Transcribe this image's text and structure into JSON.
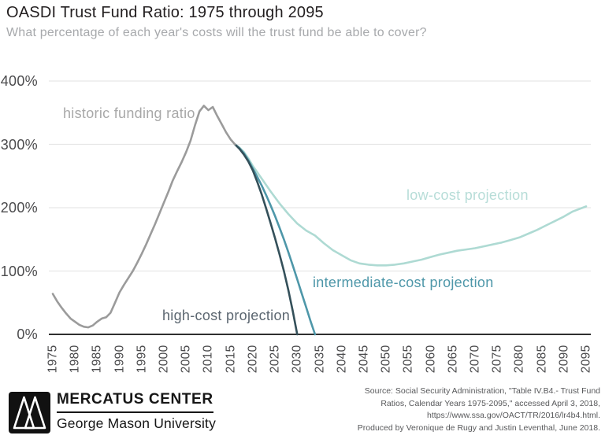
{
  "header": {
    "title": "OASDI Trust Fund Ratio: 1975 through 2095",
    "subtitle": "What percentage of each year's costs will the trust fund be able to cover?"
  },
  "chart_data": {
    "type": "line",
    "title": "OASDI Trust Fund Ratio: 1975 through 2095",
    "xlabel": "",
    "ylabel": "",
    "x_range": [
      1975,
      2095
    ],
    "y_range_pct": [
      0,
      400
    ],
    "grid": "horizontal-light",
    "x_ticks": [
      1975,
      1980,
      1985,
      1990,
      1995,
      2000,
      2005,
      2010,
      2015,
      2020,
      2025,
      2030,
      2035,
      2040,
      2045,
      2050,
      2055,
      2060,
      2065,
      2070,
      2075,
      2080,
      2085,
      2090,
      2095
    ],
    "y_ticks": [
      {
        "label": "0%",
        "value": 0
      },
      {
        "label": "100%",
        "value": 100
      },
      {
        "label": "200%",
        "value": 200
      },
      {
        "label": "300%",
        "value": 300
      },
      {
        "label": "400%",
        "value": 400
      }
    ],
    "series": [
      {
        "id": "low",
        "label": "low-cost projection",
        "color": "#aedad3",
        "points": [
          [
            2016,
            300
          ],
          [
            2017,
            295
          ],
          [
            2018,
            288
          ],
          [
            2019,
            278
          ],
          [
            2020,
            266
          ],
          [
            2022,
            246
          ],
          [
            2024,
            226
          ],
          [
            2026,
            207
          ],
          [
            2028,
            190
          ],
          [
            2030,
            175
          ],
          [
            2032,
            164
          ],
          [
            2034,
            156
          ],
          [
            2036,
            144
          ],
          [
            2038,
            133
          ],
          [
            2040,
            125
          ],
          [
            2042,
            117
          ],
          [
            2044,
            112
          ],
          [
            2046,
            110
          ],
          [
            2048,
            109
          ],
          [
            2050,
            109
          ],
          [
            2052,
            110
          ],
          [
            2054,
            112
          ],
          [
            2056,
            115
          ],
          [
            2058,
            118
          ],
          [
            2060,
            122
          ],
          [
            2062,
            126
          ],
          [
            2064,
            129
          ],
          [
            2066,
            132
          ],
          [
            2068,
            134
          ],
          [
            2070,
            136
          ],
          [
            2072,
            139
          ],
          [
            2074,
            142
          ],
          [
            2076,
            145
          ],
          [
            2078,
            149
          ],
          [
            2080,
            153
          ],
          [
            2082,
            159
          ],
          [
            2084,
            165
          ],
          [
            2086,
            172
          ],
          [
            2088,
            179
          ],
          [
            2090,
            186
          ],
          [
            2092,
            194
          ],
          [
            2095,
            202
          ]
        ]
      },
      {
        "id": "intermediate",
        "label": "intermediate-cost projection",
        "color": "#4e97a9",
        "points": [
          [
            2016,
            300
          ],
          [
            2017,
            294
          ],
          [
            2018,
            286
          ],
          [
            2019,
            275
          ],
          [
            2020,
            262
          ],
          [
            2021,
            249
          ],
          [
            2022,
            235
          ],
          [
            2023,
            220
          ],
          [
            2024,
            204
          ],
          [
            2025,
            187
          ],
          [
            2026,
            169
          ],
          [
            2027,
            150
          ],
          [
            2028,
            130
          ],
          [
            2029,
            109
          ],
          [
            2030,
            87
          ],
          [
            2031,
            65
          ],
          [
            2032,
            43
          ],
          [
            2033,
            21
          ],
          [
            2034,
            0
          ]
        ]
      },
      {
        "id": "high",
        "label": "high-cost projection",
        "color": "#34505a",
        "points": [
          [
            2016,
            300
          ],
          [
            2017,
            293
          ],
          [
            2018,
            284
          ],
          [
            2019,
            273
          ],
          [
            2020,
            259
          ],
          [
            2021,
            241
          ],
          [
            2022,
            221
          ],
          [
            2023,
            199
          ],
          [
            2024,
            176
          ],
          [
            2025,
            152
          ],
          [
            2026,
            127
          ],
          [
            2027,
            100
          ],
          [
            2028,
            70
          ],
          [
            2029,
            37
          ],
          [
            2030,
            0
          ]
        ]
      },
      {
        "id": "historic",
        "label": "historic funding ratio",
        "color": "#9b9b9b",
        "points": [
          [
            1975,
            64
          ],
          [
            1976,
            52
          ],
          [
            1977,
            42
          ],
          [
            1978,
            33
          ],
          [
            1979,
            25
          ],
          [
            1980,
            20
          ],
          [
            1981,
            15
          ],
          [
            1982,
            12
          ],
          [
            1983,
            11
          ],
          [
            1984,
            14
          ],
          [
            1985,
            20
          ],
          [
            1986,
            25
          ],
          [
            1987,
            27
          ],
          [
            1988,
            34
          ],
          [
            1989,
            50
          ],
          [
            1990,
            66
          ],
          [
            1991,
            78
          ],
          [
            1992,
            89
          ],
          [
            1993,
            100
          ],
          [
            1994,
            113
          ],
          [
            1995,
            127
          ],
          [
            1996,
            142
          ],
          [
            1997,
            158
          ],
          [
            1998,
            174
          ],
          [
            1999,
            191
          ],
          [
            2000,
            208
          ],
          [
            2001,
            225
          ],
          [
            2002,
            243
          ],
          [
            2003,
            258
          ],
          [
            2004,
            272
          ],
          [
            2005,
            288
          ],
          [
            2006,
            306
          ],
          [
            2007,
            330
          ],
          [
            2008,
            352
          ],
          [
            2009,
            361
          ],
          [
            2010,
            354
          ],
          [
            2011,
            359
          ],
          [
            2012,
            345
          ],
          [
            2013,
            332
          ],
          [
            2014,
            319
          ],
          [
            2015,
            308
          ],
          [
            2016,
            300
          ]
        ]
      }
    ]
  },
  "footer": {
    "brand": {
      "name": "MERCATUS CENTER",
      "sub": "George Mason University"
    },
    "source_lines": [
      "Source: Social Security Administration, \"Table IV.B4.- Trust Fund",
      "Ratios, Calendar Years 1975-2095,\" accessed April 3, 2018,",
      "https://www.ssa.gov/OACT/TR/2016/lr4b4.html.",
      "Produced by Veronique de Rugy and Justin Leventhal, June 2018."
    ]
  }
}
